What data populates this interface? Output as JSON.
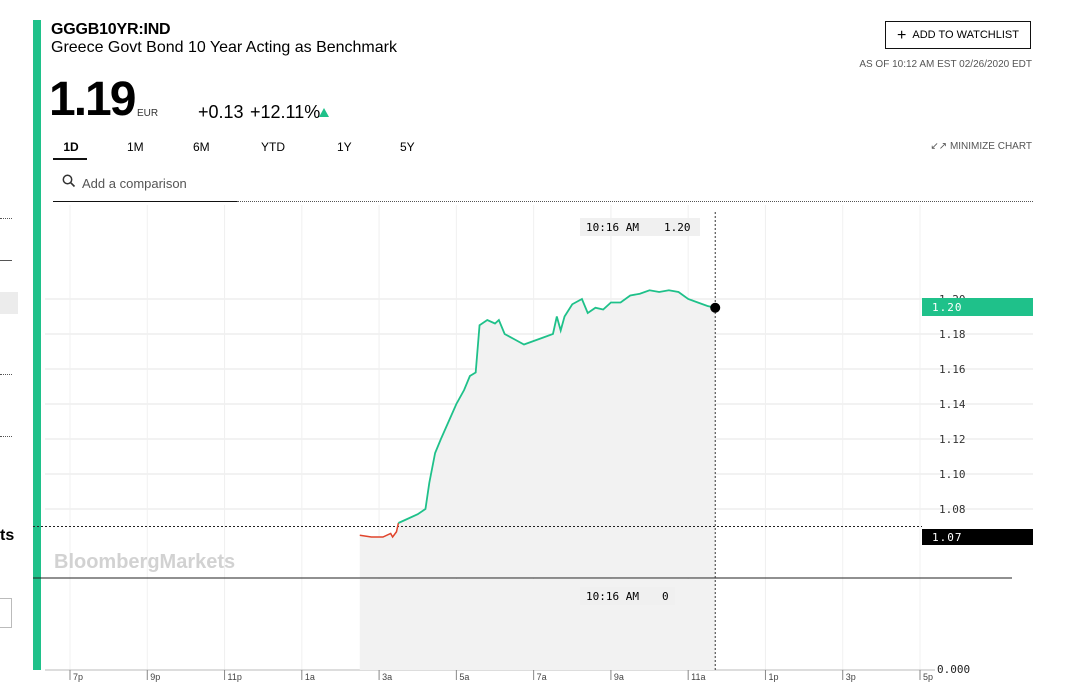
{
  "header": {
    "ticker": "GGGB10YR:IND",
    "name": "Greece Govt Bond 10 Year Acting as Benchmark",
    "price": "1.19",
    "currency": "EUR",
    "change": "+0.13",
    "change_pct": "+12.11%",
    "watchlist_label": "ADD TO WATCHLIST",
    "as_of": "AS OF 10:12 AM EST 02/26/2020 EDT"
  },
  "tabs": [
    "1D",
    "1M",
    "6M",
    "YTD",
    "1Y",
    "5Y"
  ],
  "active_tab": "1D",
  "minimize_label": "MINIMIZE CHART",
  "search": {
    "placeholder": "Add a comparison"
  },
  "side_fragment": "ts",
  "watermark": "BloombergMarkets",
  "colors": {
    "accent": "#1fc18a",
    "down": "#e0442b",
    "area": "#f2f2f2"
  },
  "chart_data": {
    "type": "line",
    "title": "",
    "xlabel": "",
    "ylabel": "",
    "x_ticks": [
      "7p",
      "9p",
      "11p",
      "1a",
      "3a",
      "5a",
      "7a",
      "9a",
      "11a",
      "1p",
      "3p",
      "5p"
    ],
    "y_ticks": [
      "1.08",
      "1.10",
      "1.12",
      "1.14",
      "1.16",
      "1.18",
      "1.20"
    ],
    "ylim": [
      1.06,
      1.2
    ],
    "x_unit": "hours since 6:00 PM (2/25)",
    "series": [
      {
        "values": [
          [
            8.5,
            1.065
          ],
          [
            8.8,
            1.064
          ],
          [
            9.1,
            1.064
          ],
          [
            9.3,
            1.066
          ],
          [
            9.35,
            1.064
          ],
          [
            9.45,
            1.067
          ],
          [
            9.5,
            1.072
          ],
          [
            9.7,
            1.074
          ],
          [
            10.0,
            1.077
          ],
          [
            10.2,
            1.08
          ],
          [
            10.3,
            1.095
          ],
          [
            10.45,
            1.112
          ],
          [
            10.6,
            1.12
          ],
          [
            10.8,
            1.13
          ],
          [
            11.0,
            1.14
          ],
          [
            11.2,
            1.148
          ],
          [
            11.35,
            1.156
          ],
          [
            11.5,
            1.158
          ],
          [
            11.6,
            1.185
          ],
          [
            11.8,
            1.188
          ],
          [
            12.0,
            1.186
          ],
          [
            12.1,
            1.188
          ],
          [
            12.25,
            1.18
          ],
          [
            12.5,
            1.177
          ],
          [
            12.75,
            1.174
          ],
          [
            13.0,
            1.176
          ],
          [
            13.25,
            1.178
          ],
          [
            13.5,
            1.18
          ],
          [
            13.6,
            1.19
          ],
          [
            13.7,
            1.182
          ],
          [
            13.8,
            1.19
          ],
          [
            14.0,
            1.197
          ],
          [
            14.25,
            1.2
          ],
          [
            14.4,
            1.192
          ],
          [
            14.6,
            1.195
          ],
          [
            14.8,
            1.194
          ],
          [
            15.0,
            1.198
          ],
          [
            15.25,
            1.198
          ],
          [
            15.5,
            1.202
          ],
          [
            15.75,
            1.203
          ],
          [
            16.0,
            1.205
          ],
          [
            16.25,
            1.204
          ],
          [
            16.5,
            1.205
          ],
          [
            16.75,
            1.204
          ],
          [
            17.0,
            1.2
          ],
          [
            17.25,
            1.198
          ],
          [
            17.5,
            1.196
          ],
          [
            17.7,
            1.195
          ]
        ]
      }
    ],
    "previous_close": 1.07,
    "previous_close_label": "1.07",
    "last_value_label": "1.20",
    "cursor_time": "10:16 AM",
    "cursor_value": "1.20",
    "volume_axis_label": "0.000",
    "volume_cursor_value": "0",
    "grid": true
  }
}
